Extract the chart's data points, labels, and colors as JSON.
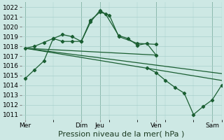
{
  "background_color": "#cde8e4",
  "grid_color": "#a8d0cc",
  "line_color": "#1a5e32",
  "ylim": [
    1010.5,
    1022.5
  ],
  "xlabel": "Pression niveau de la mer( hPa )",
  "xlabel_fontsize": 8,
  "tick_fontsize": 6.5,
  "xtick_positions": [
    0,
    3,
    4,
    7,
    10
  ],
  "xtick_labels": [
    "Mer",
    "Dim",
    "Jeu",
    "Ven",
    "Sam"
  ],
  "xlim": [
    -0.2,
    10.5
  ],
  "vlines": [
    0,
    3,
    4,
    7,
    10
  ],
  "series1_x": [
    0,
    0.5,
    1.0,
    1.5,
    2.0,
    2.5,
    3.0,
    3.5,
    4.0,
    4.3,
    5.0,
    5.5,
    6.0,
    6.5,
    7.0
  ],
  "series1_y": [
    1014.7,
    1015.6,
    1016.5,
    1018.8,
    1019.2,
    1019.0,
    1018.5,
    1020.5,
    1021.7,
    1021.3,
    1019.1,
    1018.8,
    1018.1,
    1018.3,
    1017.1
  ],
  "series2_x": [
    0,
    0.5,
    1.0,
    1.5,
    2.0,
    2.5,
    3.0,
    3.5,
    4.0,
    4.5,
    5.0,
    6.0,
    7.0
  ],
  "series2_y": [
    1017.8,
    1018.0,
    1018.4,
    1018.8,
    1018.5,
    1018.5,
    1018.5,
    1020.7,
    1021.5,
    1021.2,
    1019.0,
    1018.3,
    1018.2
  ],
  "trend1_x": [
    0,
    7.0
  ],
  "trend1_y": [
    1017.8,
    1017.1
  ],
  "trend2_x": [
    0,
    10.5
  ],
  "trend2_y": [
    1017.8,
    1015.2
  ],
  "trend3_x": [
    0,
    10.5
  ],
  "trend3_y": [
    1017.8,
    1014.5
  ],
  "series3_x": [
    6.5,
    7.0,
    7.5,
    8.0,
    8.5,
    9.0,
    9.5,
    10.0,
    10.5
  ],
  "series3_y": [
    1015.8,
    1015.3,
    1014.5,
    1013.8,
    1013.2,
    1011.0,
    1011.8,
    1012.5,
    1014.0
  ]
}
